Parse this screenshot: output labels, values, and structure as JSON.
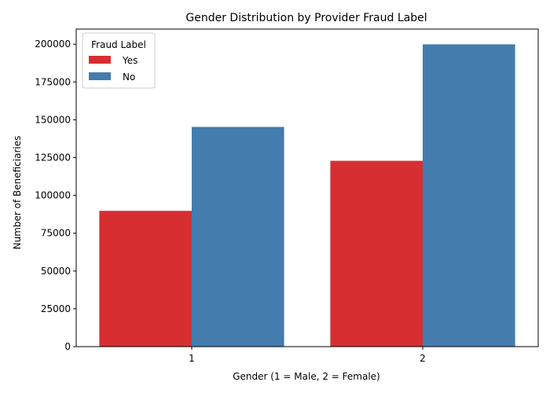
{
  "chart_data": {
    "type": "bar",
    "title": "Gender Distribution by Provider Fraud Label",
    "xlabel": "Gender (1 = Male, 2 = Female)",
    "ylabel": "Number of Beneficiaries",
    "categories": [
      "1",
      "2"
    ],
    "series": [
      {
        "name": "Yes",
        "color": "#d62e31",
        "values": [
          89800,
          122900
        ]
      },
      {
        "name": "No",
        "color": "#437cad",
        "values": [
          145300,
          199900
        ]
      }
    ],
    "ylim": [
      0,
      210000
    ],
    "yticks": [
      0,
      25000,
      50000,
      75000,
      100000,
      125000,
      150000,
      175000,
      200000
    ],
    "grid": false,
    "legend": {
      "title": "Fraud Label",
      "placement": "top-left"
    }
  }
}
